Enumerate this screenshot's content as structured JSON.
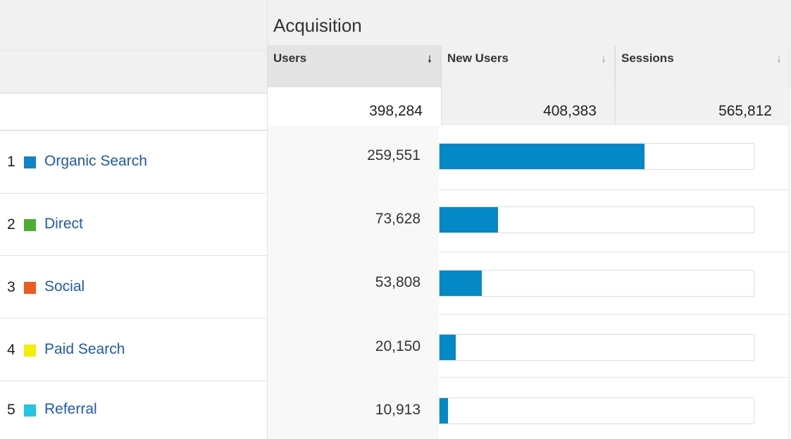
{
  "header": {
    "title": "Acquisition"
  },
  "columns": [
    {
      "label": "Users",
      "sort_icon": "sort-down-arrow-icon",
      "active": true,
      "total": "398,284"
    },
    {
      "label": "New Users",
      "sort_icon": "sort-down-arrow-icon",
      "active": false,
      "total": "408,383"
    },
    {
      "label": "Sessions",
      "sort_icon": "sort-down-arrow-icon",
      "active": false,
      "total": "565,812"
    }
  ],
  "rows": [
    {
      "index": "1",
      "name": "Organic Search",
      "color": "#0e84c6",
      "users": "259,551",
      "users_num": 259551
    },
    {
      "index": "2",
      "name": "Direct",
      "color": "#4cae31",
      "users": "73,628",
      "users_num": 73628
    },
    {
      "index": "3",
      "name": "Social",
      "color": "#ee5a1f",
      "users": "53,808",
      "users_num": 53808
    },
    {
      "index": "4",
      "name": "Paid Search",
      "color": "#f2ee06",
      "users": "20,150",
      "users_num": 20150
    },
    {
      "index": "5",
      "name": "Referral",
      "color": "#22c6e2",
      "users": "10,913",
      "users_num": 10913
    }
  ],
  "bar_color": "#0588c6",
  "bar_scale_max": 398284
}
